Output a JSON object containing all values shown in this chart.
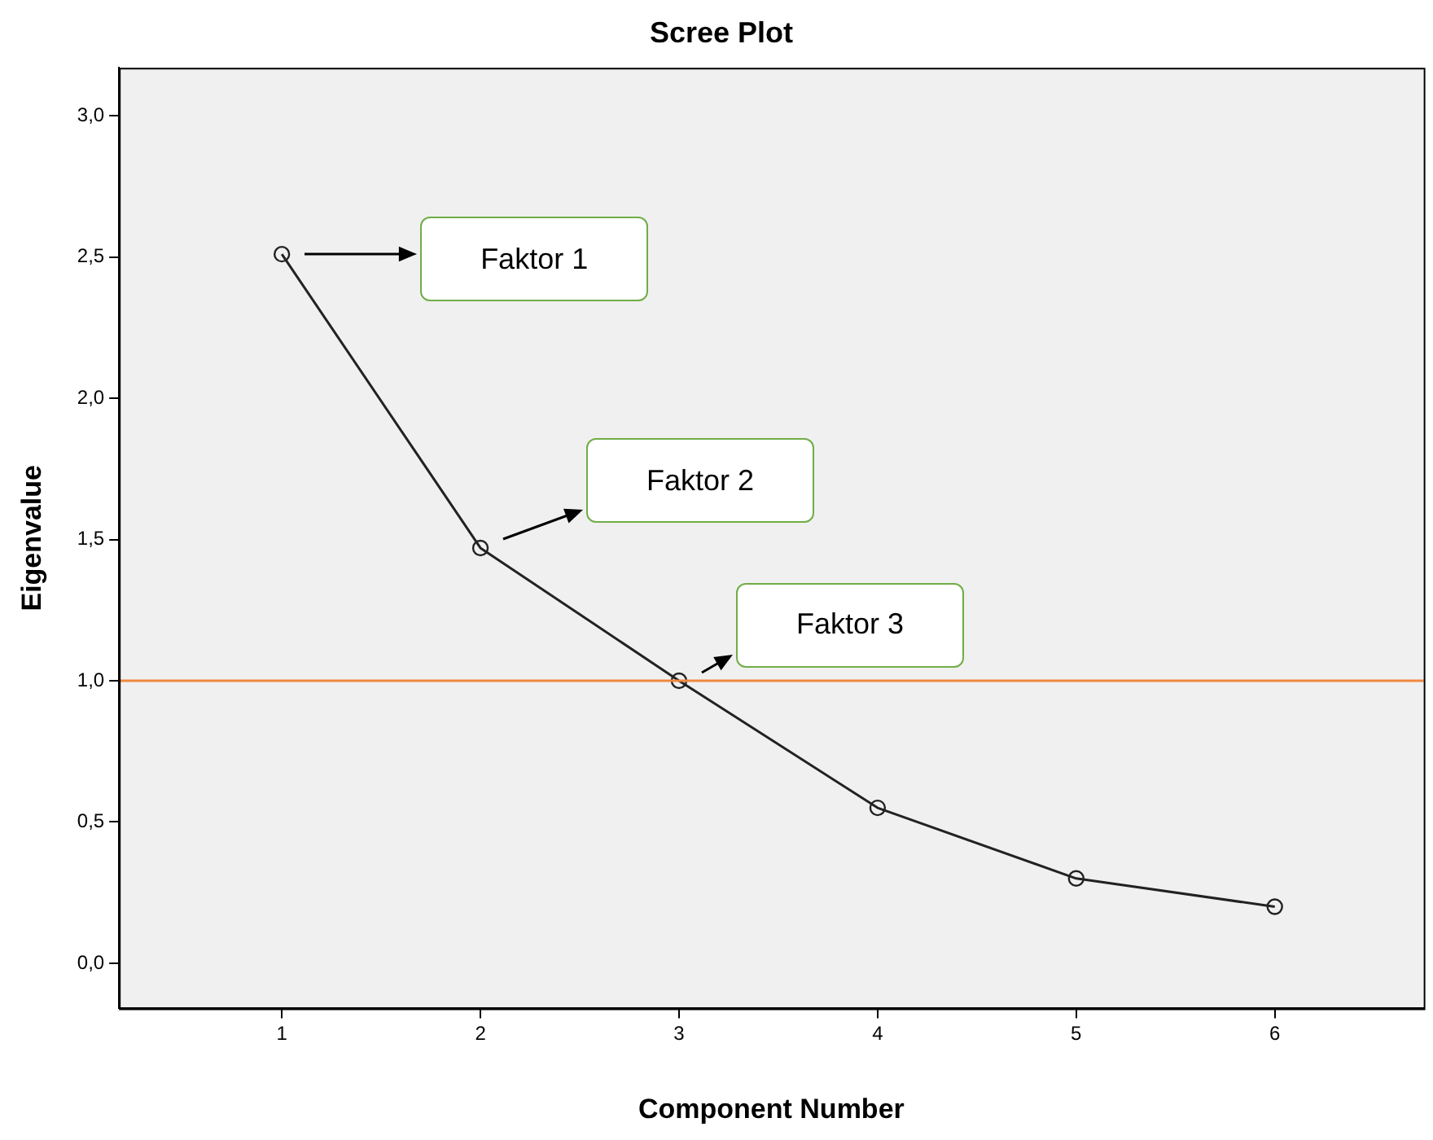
{
  "chart_data": {
    "type": "line",
    "title": "Scree Plot",
    "xlabel": "Component Number",
    "ylabel": "Eigenvalue",
    "x": [
      1,
      2,
      3,
      4,
      5,
      6
    ],
    "series": [
      {
        "color": "#222222",
        "values": [
          2.51,
          1.47,
          1.0,
          0.55,
          0.3,
          0.2
        ]
      }
    ],
    "xlim": [
      0.18,
      6.75
    ],
    "xticks": [
      1,
      2,
      3,
      4,
      5,
      6
    ],
    "ylim": [
      -0.16,
      3.17
    ],
    "yticks": [
      {
        "value": 0,
        "label": "0,0"
      },
      {
        "value": 0.5,
        "label": "0,5"
      },
      {
        "value": 1,
        "label": "1,0"
      },
      {
        "value": 1.5,
        "label": "1,5"
      },
      {
        "value": 2,
        "label": "2,0"
      },
      {
        "value": 2.5,
        "label": "2,5"
      },
      {
        "value": 3,
        "label": "3,0"
      }
    ],
    "ref_lines": [
      {
        "axis": "y",
        "value": 1.0,
        "color": "#f0883e"
      }
    ],
    "annotations": [
      "Faktor 1",
      "Faktor 2",
      "Faktor 3"
    ],
    "grid": false,
    "legend": false,
    "marker": "circle",
    "line_style": "solid"
  }
}
